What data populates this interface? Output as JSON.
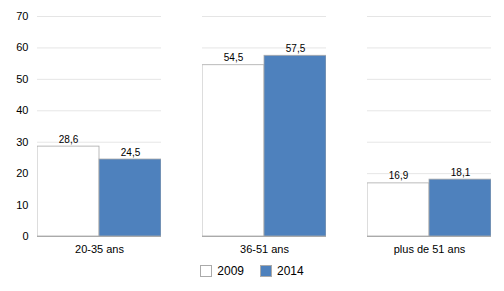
{
  "chart_data": {
    "type": "bar",
    "categories": [
      "20-35 ans",
      "36-51 ans",
      "plus de 51 ans"
    ],
    "series": [
      {
        "name": "2009",
        "color": "#ffffff",
        "values": [
          28.6,
          54.5,
          16.9
        ],
        "value_labels": [
          "28,6",
          "54,5",
          "16,9"
        ]
      },
      {
        "name": "2014",
        "color": "#4e81bd",
        "values": [
          24.5,
          57.5,
          18.1
        ],
        "value_labels": [
          "24,5",
          "57,5",
          "18,1"
        ]
      }
    ],
    "ylim": [
      0,
      70
    ],
    "yticks": [
      0,
      10,
      20,
      30,
      40,
      50,
      60,
      70
    ],
    "grid": true,
    "legend": "bottom",
    "data_labels": true
  }
}
